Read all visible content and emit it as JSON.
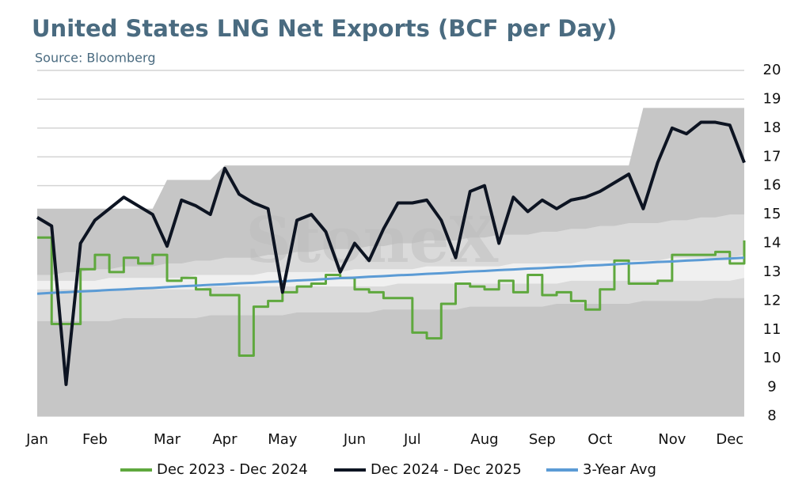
{
  "chart_data": {
    "type": "line",
    "title": "United States LNG Net Exports (BCF per Day)",
    "subtitle": "Source: Bloomberg",
    "watermark": "StoneX",
    "categories": [
      "Jan",
      null,
      null,
      null,
      "Feb",
      null,
      null,
      null,
      null,
      "Mar",
      null,
      null,
      null,
      "Apr",
      null,
      null,
      null,
      "May",
      null,
      null,
      null,
      null,
      "Jun",
      null,
      null,
      null,
      "Jul",
      null,
      null,
      null,
      null,
      "Aug",
      null,
      null,
      null,
      "Sep",
      null,
      null,
      null,
      "Oct",
      null,
      null,
      null,
      null,
      "Nov",
      null,
      null,
      null,
      "Dec",
      null
    ],
    "bands": [
      {
        "color": "#c6c6c6",
        "high": [
          15.2,
          15.2,
          15.2,
          15.2,
          15.2,
          15.2,
          15.2,
          15.2,
          15.2,
          16.2,
          16.2,
          16.2,
          16.2,
          16.7,
          16.7,
          16.7,
          16.7,
          16.7,
          16.7,
          16.7,
          16.7,
          16.7,
          16.7,
          16.7,
          16.7,
          16.7,
          16.7,
          16.7,
          16.7,
          16.7,
          16.7,
          16.7,
          16.7,
          16.7,
          16.7,
          16.7,
          16.7,
          16.7,
          16.7,
          16.7,
          16.7,
          16.7,
          18.7,
          18.7,
          18.7,
          18.7,
          18.7,
          18.7,
          18.7,
          18.7
        ]
      },
      {
        "color": "#dadada",
        "low": [
          11.3,
          11.3,
          11.3,
          11.3,
          11.3,
          11.3,
          11.4,
          11.4,
          11.4,
          11.4,
          11.4,
          11.4,
          11.5,
          11.5,
          11.5,
          11.5,
          11.5,
          11.5,
          11.6,
          11.6,
          11.6,
          11.6,
          11.6,
          11.6,
          11.7,
          11.7,
          11.7,
          11.7,
          11.7,
          11.7,
          11.8,
          11.8,
          11.8,
          11.8,
          11.8,
          11.8,
          11.9,
          11.9,
          11.9,
          11.9,
          11.9,
          11.9,
          12.0,
          12.0,
          12.0,
          12.0,
          12.0,
          12.1,
          12.1,
          12.1
        ],
        "high": [
          12.9,
          12.9,
          13.0,
          13.0,
          13.1,
          13.1,
          13.2,
          13.2,
          13.2,
          13.3,
          13.3,
          13.4,
          13.4,
          13.5,
          13.5,
          13.5,
          13.6,
          13.6,
          13.7,
          13.7,
          13.8,
          13.8,
          13.8,
          13.9,
          13.9,
          14.0,
          14.0,
          14.1,
          14.1,
          14.1,
          14.2,
          14.2,
          14.3,
          14.3,
          14.3,
          14.4,
          14.4,
          14.5,
          14.5,
          14.6,
          14.6,
          14.7,
          14.7,
          14.7,
          14.8,
          14.8,
          14.9,
          14.9,
          15.0,
          15.0
        ]
      },
      {
        "color": "#f0f0f0",
        "low": [
          12.4,
          12.4,
          12.4,
          12.4,
          12.4,
          12.4,
          12.4,
          12.4,
          12.4,
          12.4,
          12.4,
          12.4,
          12.5,
          12.5,
          12.5,
          12.5,
          12.5,
          12.5,
          12.5,
          12.5,
          12.5,
          12.5,
          12.5,
          12.5,
          12.5,
          12.6,
          12.6,
          12.6,
          12.6,
          12.6,
          12.6,
          12.6,
          12.6,
          12.6,
          12.6,
          12.6,
          12.6,
          12.7,
          12.7,
          12.7,
          12.7,
          12.7,
          12.7,
          12.7,
          12.7,
          12.7,
          12.7,
          12.7,
          12.7,
          12.8
        ],
        "high": [
          12.7,
          12.7,
          12.7,
          12.7,
          12.7,
          12.8,
          12.8,
          12.8,
          12.8,
          12.8,
          12.8,
          12.9,
          12.9,
          12.9,
          12.9,
          12.9,
          13.0,
          13.0,
          13.0,
          13.0,
          13.0,
          13.0,
          13.1,
          13.1,
          13.1,
          13.1,
          13.1,
          13.2,
          13.2,
          13.2,
          13.2,
          13.2,
          13.2,
          13.3,
          13.3,
          13.3,
          13.3,
          13.3,
          13.4,
          13.4,
          13.4,
          13.4,
          13.4,
          13.4,
          13.5,
          13.5,
          13.5,
          13.5,
          13.5,
          13.6
        ]
      }
    ],
    "series": [
      {
        "name": "Dec 2023 - Dec 2024",
        "color": "#5fa83e",
        "width": 3,
        "step": true,
        "values": [
          14.2,
          11.2,
          11.2,
          13.1,
          13.6,
          13.0,
          13.5,
          13.3,
          13.6,
          12.7,
          12.8,
          12.4,
          12.2,
          12.2,
          10.1,
          11.8,
          12.0,
          12.3,
          12.5,
          12.6,
          12.9,
          12.8,
          12.4,
          12.3,
          12.1,
          12.1,
          10.9,
          10.7,
          11.9,
          12.6,
          12.5,
          12.4,
          12.7,
          12.3,
          12.9,
          12.2,
          12.3,
          12.0,
          11.7,
          12.4,
          13.4,
          12.6,
          12.6,
          12.7,
          13.6,
          13.6,
          13.6,
          13.7,
          13.3,
          14.1
        ]
      },
      {
        "name": "Dec 2024 - Dec 2025",
        "color": "#0d1422",
        "width": 4,
        "step": false,
        "values": [
          14.9,
          14.6,
          9.1,
          14.0,
          14.8,
          15.2,
          15.6,
          15.3,
          15.0,
          13.9,
          15.5,
          15.3,
          15.0,
          16.6,
          15.7,
          15.4,
          15.2,
          12.3,
          14.8,
          15.0,
          14.4,
          13.0,
          14.0,
          13.4,
          14.5,
          15.4,
          15.4,
          15.5,
          14.8,
          13.5,
          15.8,
          16.0,
          14.0,
          15.6,
          15.1,
          15.5,
          15.2,
          15.5,
          15.6,
          15.8,
          16.1,
          16.4,
          15.2,
          16.8,
          18.0,
          17.8,
          18.2,
          18.2,
          18.1,
          16.8
        ]
      },
      {
        "name": "3-Year Avg",
        "color": "#5b9bd5",
        "width": 3,
        "step": false,
        "values": [
          12.25,
          12.28,
          12.3,
          12.33,
          12.35,
          12.38,
          12.4,
          12.43,
          12.45,
          12.48,
          12.51,
          12.53,
          12.56,
          12.58,
          12.61,
          12.63,
          12.66,
          12.68,
          12.71,
          12.73,
          12.76,
          12.79,
          12.81,
          12.84,
          12.86,
          12.89,
          12.91,
          12.94,
          12.96,
          12.99,
          13.02,
          13.04,
          13.07,
          13.09,
          13.12,
          13.14,
          13.17,
          13.19,
          13.22,
          13.24,
          13.27,
          13.3,
          13.32,
          13.35,
          13.37,
          13.4,
          13.42,
          13.45,
          13.47,
          13.5
        ]
      }
    ],
    "ylim": [
      8,
      20
    ],
    "yticks": [
      8,
      9,
      10,
      11,
      12,
      13,
      14,
      15,
      16,
      17,
      18,
      19,
      20
    ],
    "grid": true,
    "legend": "bottom"
  }
}
